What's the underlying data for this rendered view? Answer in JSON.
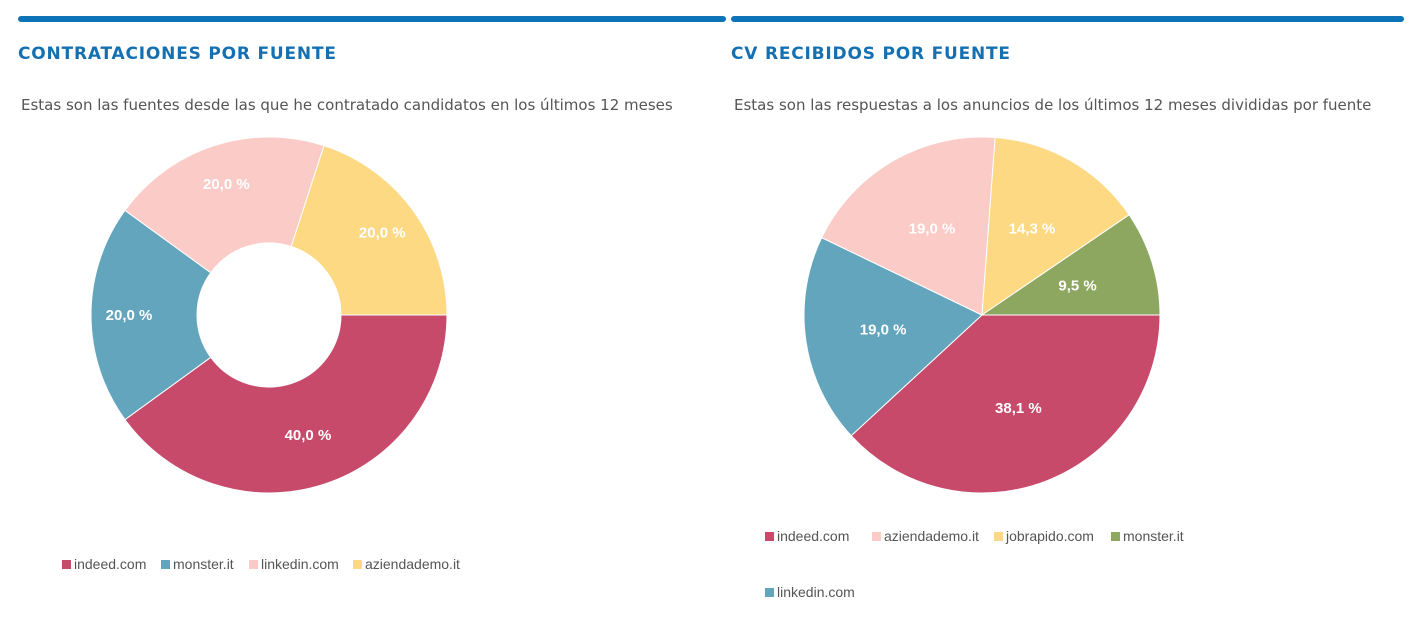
{
  "panels": [
    {
      "title": "CONTRATACIONES POR FUENTE",
      "description": "Estas son las fuentes desde las que he contratado candidatos en los últimos 12 meses",
      "legend": [
        "indeed.com",
        "monster.it",
        "linkedin.com",
        "aziendademo.it"
      ]
    },
    {
      "title": "CV RECIBIDOS POR FUENTE",
      "description": "Estas son las respuestas a los anuncios de los últimos 12 meses divididas por fuente",
      "legend": [
        "indeed.com",
        "aziendademo.it",
        "jobrapido.com",
        "monster.it",
        "linkedin.com"
      ]
    }
  ],
  "colors": {
    "indeed.com": "#c74a6b",
    "monster.it": "#64a5be",
    "linkedin.com": "#fbcbc7",
    "aziendademo.it": "#fdd984",
    "jobrapido.com": "#fdd984",
    "green": "#8ea760",
    "accent": "#0e74b8"
  },
  "chart_data": [
    {
      "type": "pie",
      "donut": true,
      "title": "CONTRATACIONES POR FUENTE",
      "slices": [
        {
          "value": 40.0,
          "label": "40,0 %",
          "color": "#c74a6b"
        },
        {
          "value": 20.0,
          "label": "20,0 %",
          "color": "#64a5be"
        },
        {
          "value": 20.0,
          "label": "20,0 %",
          "color": "#fbcbc7"
        },
        {
          "value": 20.0,
          "label": "20,0 %",
          "color": "#fdd984"
        }
      ],
      "legend": [
        "indeed.com",
        "monster.it",
        "linkedin.com",
        "aziendademo.it"
      ],
      "legend_position": "bottom"
    },
    {
      "type": "pie",
      "donut": false,
      "title": "CV RECIBIDOS POR FUENTE",
      "slices": [
        {
          "value": 38.1,
          "label": "38,1 %",
          "color": "#c74a6b"
        },
        {
          "value": 19.0,
          "label": "19,0 %",
          "color": "#64a5be"
        },
        {
          "value": 19.0,
          "label": "19,0 %",
          "color": "#fbcbc7"
        },
        {
          "value": 14.3,
          "label": "14,3 %",
          "color": "#fdd984"
        },
        {
          "value": 9.5,
          "label": "9,5 %",
          "color": "#8ea760"
        }
      ],
      "legend": [
        "indeed.com",
        "aziendademo.it",
        "jobrapido.com",
        "monster.it",
        "linkedin.com"
      ],
      "legend_position": "bottom"
    }
  ]
}
